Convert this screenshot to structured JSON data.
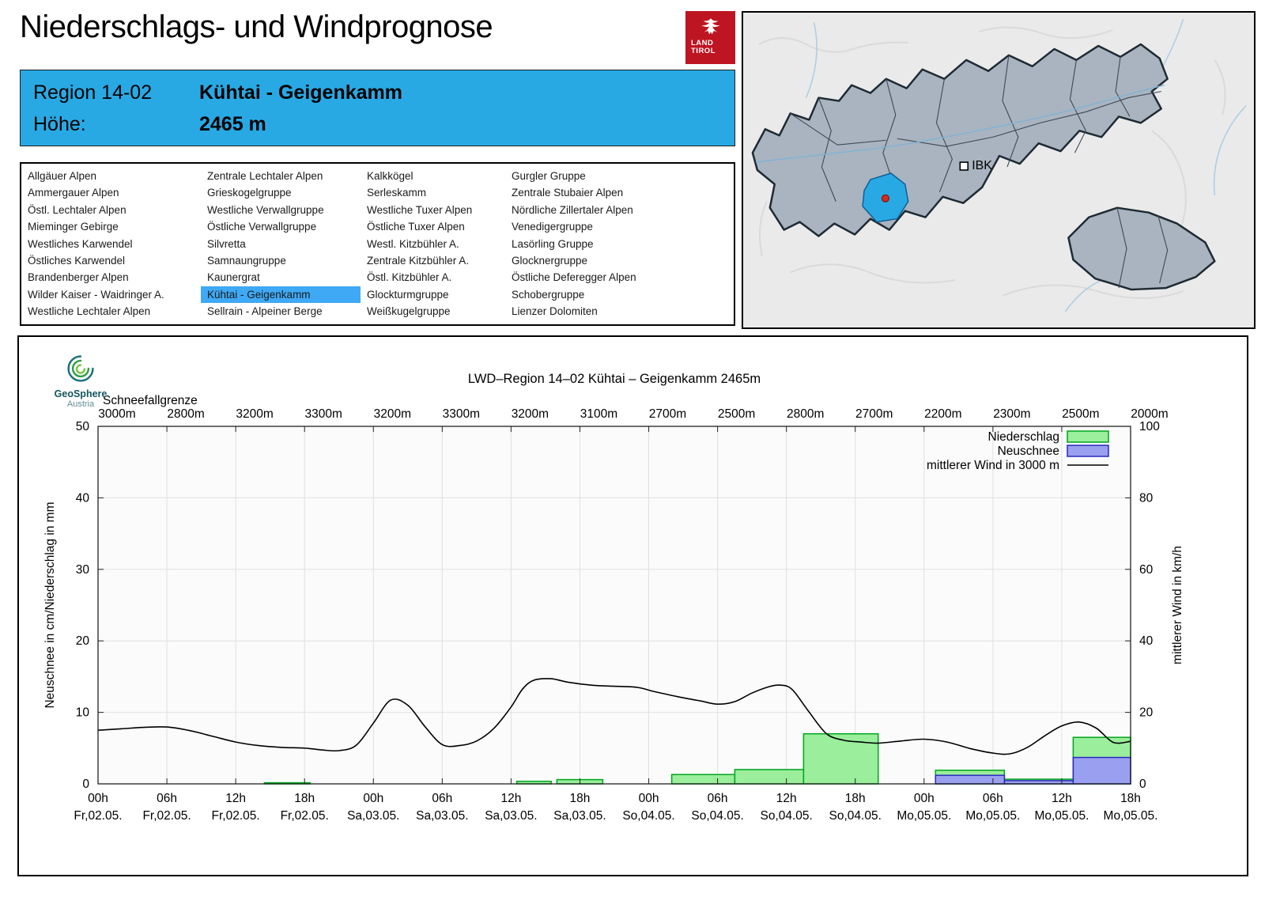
{
  "page": {
    "title": "Niederschlags- und Windprognose"
  },
  "logo": {
    "line1": "LAND",
    "line2": "TIROL",
    "bg_color": "#BE1522"
  },
  "map": {
    "ibk_label": "IBK"
  },
  "header": {
    "region_label": "Region 14-02",
    "region_value": "Kühtai - Geigenkamm",
    "altitude_label": "Höhe:",
    "altitude_value": "2465 m",
    "accent_color": "#29A9E4"
  },
  "region_list": {
    "selected": "Kühtai - Geigenkamm",
    "selection_color": "#3FA9F5",
    "columns": [
      [
        "Allgäuer Alpen",
        "Ammergauer Alpen",
        "Östl. Lechtaler Alpen",
        "Mieminger Gebirge",
        "Westliches Karwendel",
        "Östliches Karwendel",
        "Brandenberger Alpen",
        "Wilder Kaiser - Waidringer A.",
        "Westliche Lechtaler Alpen"
      ],
      [
        "Zentrale Lechtaler Alpen",
        "Grieskogelgruppe",
        "Westliche Verwallgruppe",
        "Östliche Verwallgruppe",
        "Silvretta",
        "Samnaungruppe",
        "Kaunergrat",
        "Kühtai - Geigenkamm",
        "Sellrain - Alpeiner Berge"
      ],
      [
        "Kalkkögel",
        "Serleskamm",
        "Westliche Tuxer Alpen",
        "Östliche Tuxer Alpen",
        "Westl. Kitzbühler A.",
        "Zentrale Kitzbühler A.",
        "Östl. Kitzbühler A.",
        "Glockturmgruppe",
        "Weißkugelgruppe"
      ],
      [
        "Gurgler Gruppe",
        "Zentrale Stubaier Alpen",
        "Nördliche Zillertaler Alpen",
        "Venedigergruppe",
        "Lasörling Gruppe",
        "Glocknergruppe",
        "Östliche Deferegger Alpen",
        "Schobergruppe",
        "Lienzer Dolomiten"
      ]
    ]
  },
  "geosphere": {
    "name": "GeoSphere",
    "country": "Austria"
  },
  "chart_data": {
    "type": "composite",
    "title": "LWD–Region 14–02 Kühtai – Geigenkamm 2465m",
    "ylabel_left": "Neuschnee in cm/Niederschlag in mm",
    "ylabel_right": "mittlerer Wind in km/h",
    "ylim_left": [
      0,
      50
    ],
    "ylim_right": [
      0,
      100
    ],
    "x_hours_range": [
      0,
      90
    ],
    "grid": true,
    "legend_position": "top-right",
    "x_ticks": [
      {
        "hour": "00h",
        "date": "Fr,02.05."
      },
      {
        "hour": "06h",
        "date": "Fr,02.05."
      },
      {
        "hour": "12h",
        "date": "Fr,02.05."
      },
      {
        "hour": "18h",
        "date": "Fr,02.05."
      },
      {
        "hour": "00h",
        "date": "Sa,03.05."
      },
      {
        "hour": "06h",
        "date": "Sa,03.05."
      },
      {
        "hour": "12h",
        "date": "Sa,03.05."
      },
      {
        "hour": "18h",
        "date": "Sa,03.05."
      },
      {
        "hour": "00h",
        "date": "So,04.05."
      },
      {
        "hour": "06h",
        "date": "So,04.05."
      },
      {
        "hour": "12h",
        "date": "So,04.05."
      },
      {
        "hour": "18h",
        "date": "So,04.05."
      },
      {
        "hour": "00h",
        "date": "Mo,05.05."
      },
      {
        "hour": "06h",
        "date": "Mo,05.05."
      },
      {
        "hour": "12h",
        "date": "Mo,05.05."
      },
      {
        "hour": "18h",
        "date": "Mo,05.05."
      }
    ],
    "snowline": {
      "label": "Schneefallgrenze",
      "values": [
        "3000m",
        "2800m",
        "3200m",
        "3300m",
        "3200m",
        "3300m",
        "3200m",
        "3100m",
        "2700m",
        "2500m",
        "2800m",
        "2700m",
        "2200m",
        "2300m",
        "2500m",
        "2000m"
      ]
    },
    "legend": [
      {
        "label": "Niederschlag",
        "type": "bar",
        "fill": "#9BEE9B",
        "stroke": "#00A51E"
      },
      {
        "label": "Neuschnee",
        "type": "bar",
        "fill": "#9B9FEF",
        "stroke": "#2A2ABF"
      },
      {
        "label": "mittlerer Wind in 3000 m",
        "type": "line",
        "stroke": "#000000"
      }
    ],
    "series": {
      "niederschlag_mm": [
        {
          "start": 14.5,
          "end": 18.5,
          "value": 0.15
        },
        {
          "start": 36.5,
          "end": 39.5,
          "value": 0.35
        },
        {
          "start": 40,
          "end": 44,
          "value": 0.6
        },
        {
          "start": 50,
          "end": 55.5,
          "value": 1.3
        },
        {
          "start": 55.5,
          "end": 61.5,
          "value": 2.0
        },
        {
          "start": 61.5,
          "end": 68,
          "value": 7.0
        },
        {
          "start": 73,
          "end": 79,
          "value": 1.9
        },
        {
          "start": 79,
          "end": 85,
          "value": 0.65
        },
        {
          "start": 85,
          "end": 90,
          "value": 6.5
        }
      ],
      "neuschnee_cm": [
        {
          "start": 73,
          "end": 79,
          "value": 1.2
        },
        {
          "start": 79,
          "end": 85,
          "value": 0.45
        },
        {
          "start": 85,
          "end": 90,
          "value": 3.7
        }
      ],
      "wind_kmh": [
        [
          0,
          15
        ],
        [
          2,
          15.4
        ],
        [
          4,
          15.8
        ],
        [
          6,
          15.9
        ],
        [
          8,
          14.9
        ],
        [
          10,
          13.3
        ],
        [
          12,
          11.7
        ],
        [
          14,
          10.7
        ],
        [
          16,
          10.2
        ],
        [
          18,
          10
        ],
        [
          19.5,
          9.5
        ],
        [
          21,
          9.3
        ],
        [
          22.5,
          10.8
        ],
        [
          24,
          17
        ],
        [
          25.5,
          23.4
        ],
        [
          27,
          22
        ],
        [
          28.5,
          16
        ],
        [
          30,
          11
        ],
        [
          31.5,
          10.7
        ],
        [
          33,
          12
        ],
        [
          34.5,
          15.5
        ],
        [
          36,
          21.5
        ],
        [
          37,
          26.5
        ],
        [
          38,
          29
        ],
        [
          39.5,
          29.4
        ],
        [
          41,
          28.4
        ],
        [
          43,
          27.6
        ],
        [
          45,
          27.3
        ],
        [
          47,
          27
        ],
        [
          48.5,
          25.8
        ],
        [
          50.5,
          24.4
        ],
        [
          52.5,
          23.2
        ],
        [
          54,
          22.3
        ],
        [
          55.5,
          23
        ],
        [
          57,
          25.4
        ],
        [
          58.5,
          27.2
        ],
        [
          59.5,
          27.6
        ],
        [
          60.5,
          26.4
        ],
        [
          62,
          20
        ],
        [
          63.5,
          14
        ],
        [
          65,
          12.2
        ],
        [
          66.5,
          11.7
        ],
        [
          68,
          11.4
        ],
        [
          70,
          12
        ],
        [
          72,
          12.5
        ],
        [
          74,
          11.7
        ],
        [
          76,
          9.9
        ],
        [
          78,
          8.6
        ],
        [
          79.5,
          8.4
        ],
        [
          81,
          10.2
        ],
        [
          82.5,
          13.4
        ],
        [
          84,
          16.2
        ],
        [
          85.5,
          17.3
        ],
        [
          87,
          15.6
        ],
        [
          88.5,
          11.6
        ],
        [
          90,
          11.9
        ]
      ]
    }
  }
}
